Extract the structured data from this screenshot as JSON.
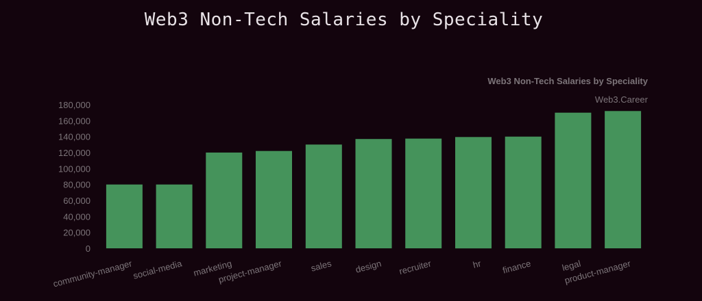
{
  "header": {
    "title": "Web3 Non-Tech Salaries by Speciality"
  },
  "colors": {
    "background": "#13040d",
    "bar": "#45935b",
    "text": "#7c7479",
    "title": "#e8e2e6"
  },
  "chart_data": {
    "type": "bar",
    "title": "Web3 Non-Tech Salaries by Speciality",
    "subtitle": "Web3.Career",
    "xlabel": "",
    "ylabel": "",
    "categories": [
      "community-manager",
      "social-media",
      "marketing",
      "project-manager",
      "sales",
      "design",
      "recruiter",
      "hr",
      "finance",
      "legal",
      "product-manager"
    ],
    "values": [
      80000,
      80000,
      120000,
      122000,
      130000,
      137000,
      137500,
      139500,
      140000,
      170000,
      172000
    ],
    "ylim": [
      0,
      180000
    ],
    "yticks": [
      0,
      20000,
      40000,
      60000,
      80000,
      100000,
      120000,
      140000,
      160000,
      180000
    ],
    "ytick_labels": [
      "0",
      "20,000",
      "40,000",
      "60,000",
      "80,000",
      "100,000",
      "120,000",
      "140,000",
      "160,000",
      "180,000"
    ],
    "grid": false,
    "legend": "none"
  }
}
